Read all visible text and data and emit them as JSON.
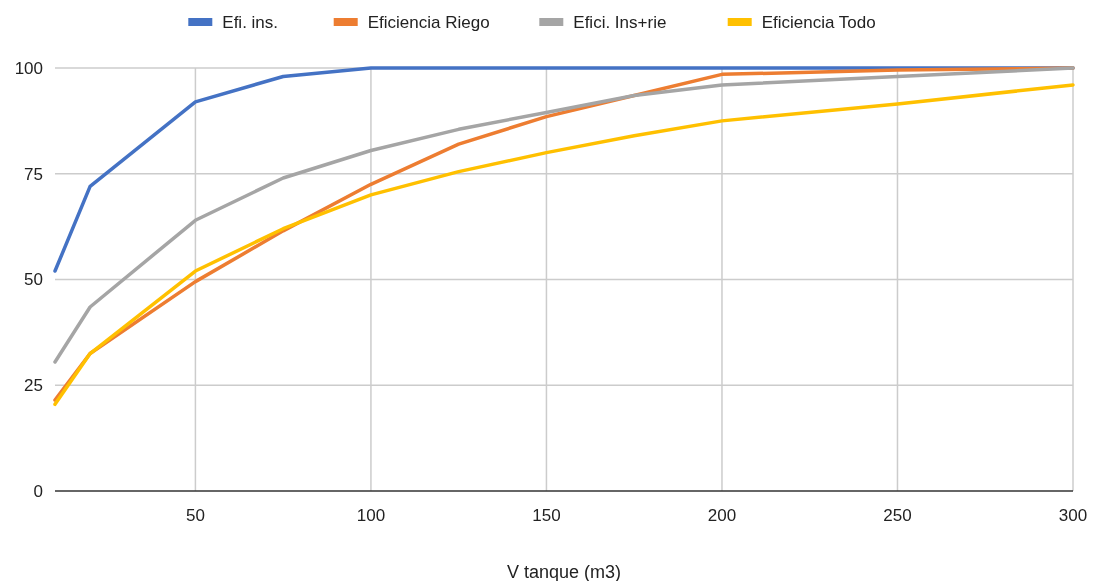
{
  "chart_data": {
    "type": "line",
    "xlabel": "V tanque (m3)",
    "x": [
      10,
      20,
      50,
      75,
      100,
      125,
      150,
      175,
      200,
      250,
      300
    ],
    "series": [
      {
        "name": "Efi. ins.",
        "color": "#4472c4",
        "values": [
          52,
          72,
          92,
          98,
          100,
          100,
          100,
          100,
          100,
          100,
          100
        ]
      },
      {
        "name": "Eficiencia Riego",
        "color": "#ed7d31",
        "values": [
          21.5,
          32.5,
          49.5,
          61.5,
          72.5,
          82,
          88.5,
          93.5,
          98.5,
          99.5,
          100
        ]
      },
      {
        "name": "Efici. Ins+rie",
        "color": "#a5a5a5",
        "values": [
          30.5,
          43.5,
          64,
          74,
          80.5,
          85.5,
          89.5,
          93.5,
          96,
          98,
          100
        ]
      },
      {
        "name": "Eficiencia Todo",
        "color": "#ffc000",
        "values": [
          20.5,
          32.5,
          52,
          62,
          70,
          75.5,
          80,
          84,
          87.5,
          91.5,
          96
        ]
      }
    ],
    "xlim": [
      10,
      300
    ],
    "xticks": [
      50,
      100,
      150,
      200,
      250,
      300
    ],
    "ylim": [
      0,
      100
    ],
    "yticks": [
      0,
      25,
      50,
      75,
      100
    ],
    "grid": true,
    "legend": "top",
    "marker": "none",
    "line_style": "solid"
  }
}
